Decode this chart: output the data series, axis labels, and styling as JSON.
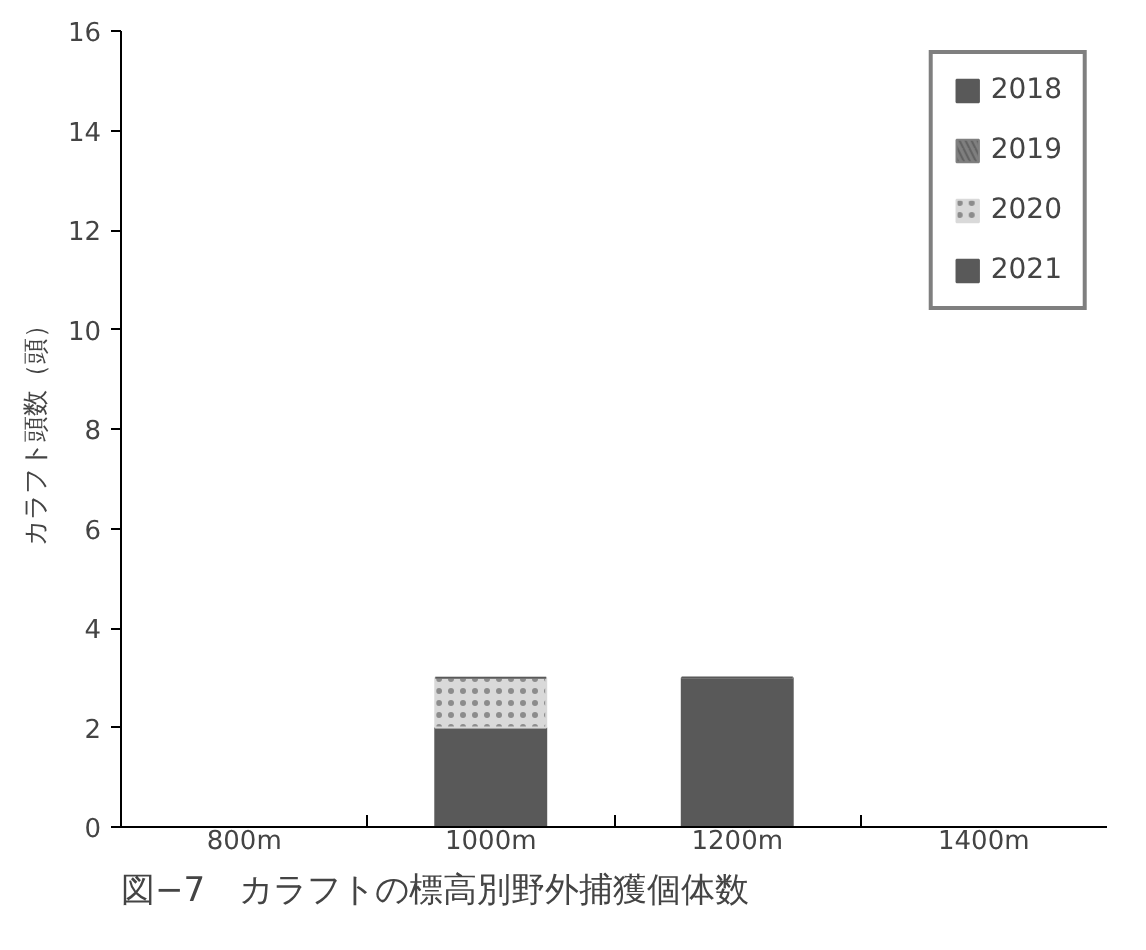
{
  "chart_data": {
    "type": "bar",
    "stacked": true,
    "title": "図−7　カラフトの標高別野外捕獲個体数",
    "ylabel": "カラフト頭数（頭）",
    "categories": [
      "800m",
      "1000m",
      "1200m",
      "1400m"
    ],
    "series": [
      {
        "name": "2018",
        "color": "#595959",
        "values": [
          0,
          2,
          3,
          0
        ]
      },
      {
        "name": "2019",
        "color": "#7f7f7f",
        "values": [
          0,
          0,
          0,
          0
        ]
      },
      {
        "name": "2020",
        "color": "#d9d9d9",
        "values": [
          0,
          1,
          0,
          0
        ]
      },
      {
        "name": "2021",
        "color": "#595959",
        "values": [
          0,
          0,
          0,
          0
        ]
      }
    ],
    "ylim": [
      0,
      16
    ],
    "yticks": [
      0,
      2,
      4,
      6,
      8,
      10,
      12,
      14,
      16
    ],
    "grid": false,
    "legend": "top right"
  }
}
